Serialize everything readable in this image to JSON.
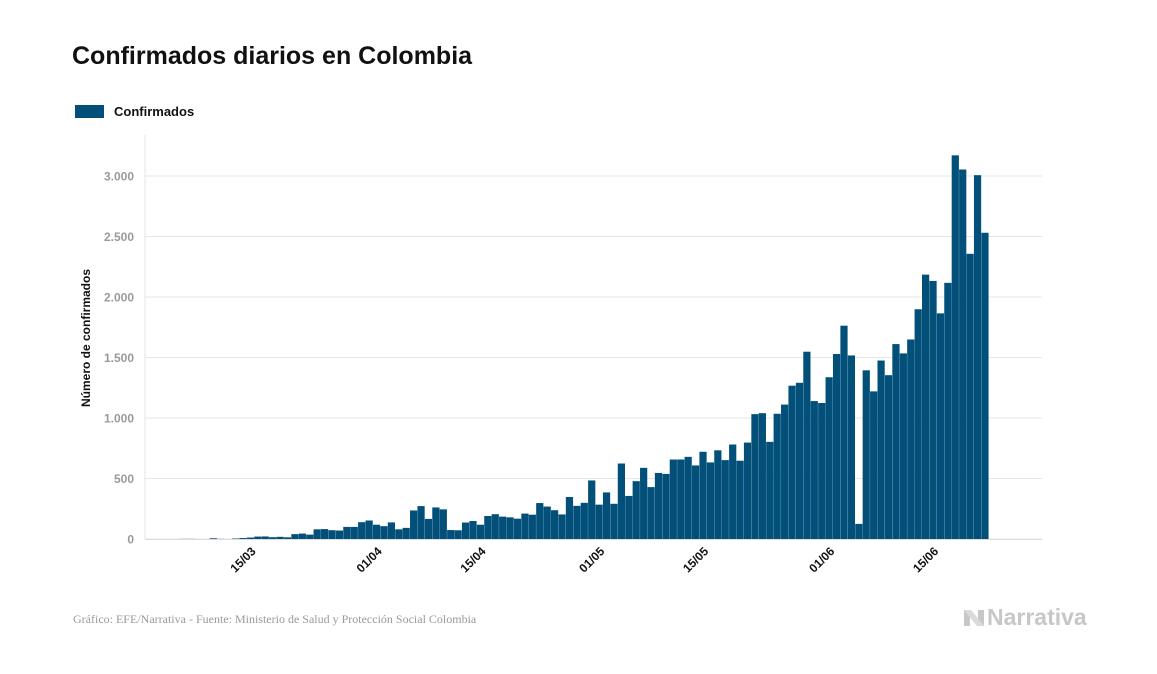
{
  "title": "Confirmados diarios en Colombia",
  "legend": {
    "label": "Confirmados"
  },
  "colors": {
    "bar": "#02507a",
    "grid": "#e6e6e6",
    "tick": "#9a9a9a",
    "axis_label": "#111111"
  },
  "source": "Gráfico: EFE/Narrativa - Fuente: Ministerio de Salud y Protección Social Colombia",
  "logo": {
    "text": "Narrativa",
    "icon": "narrativa-logo-icon"
  },
  "chart_data": {
    "type": "bar",
    "title": "Confirmados diarios en Colombia",
    "xlabel": "",
    "ylabel": "Número de confirmados",
    "ylim": [
      0,
      3300
    ],
    "yticks": [
      0,
      500,
      1000,
      1500,
      2000,
      2500,
      3000
    ],
    "ytick_labels": [
      "0",
      "500",
      "1.000",
      "1.500",
      "2.000",
      "2.500",
      "3.000"
    ],
    "x_start_date": "2020-03-06",
    "xtick_labels": [
      {
        "date": "2020-03-15",
        "label": "15/03"
      },
      {
        "date": "2020-04-01",
        "label": "01/04"
      },
      {
        "date": "2020-04-15",
        "label": "15/04"
      },
      {
        "date": "2020-05-01",
        "label": "01/05"
      },
      {
        "date": "2020-05-15",
        "label": "15/05"
      },
      {
        "date": "2020-06-01",
        "label": "01/06"
      },
      {
        "date": "2020-06-15",
        "label": "15/06"
      }
    ],
    "grid": true,
    "legend_position": "top-left",
    "series": [
      {
        "name": "Confirmados",
        "values": [
          1,
          1,
          0,
          0,
          6,
          1,
          0,
          4,
          8,
          12,
          20,
          21,
          15,
          18,
          14,
          40,
          45,
          36,
          80,
          82,
          73,
          70,
          100,
          100,
          139,
          153,
          118,
          106,
          137,
          80,
          92,
          236,
          272,
          166,
          261,
          245,
          74,
          72,
          136,
          149,
          118,
          190,
          205,
          185,
          179,
          168,
          210,
          201,
          297,
          268,
          238,
          203,
          347,
          274,
          299,
          484,
          284,
          385,
          291,
          624,
          356,
          478,
          588,
          429,
          546,
          538,
          657,
          657,
          679,
          608,
          721,
          633,
          733,
          652,
          781,
          647,
          797,
          1032,
          1040,
          803,
          1035,
          1111,
          1267,
          1291,
          1548,
          1140,
          1124,
          1337,
          1529,
          1763,
          1517,
          125,
          1394,
          1220,
          1475,
          1354,
          1611,
          1534,
          1649,
          1899,
          2185,
          2133,
          1865,
          2117,
          3171,
          3054,
          2357,
          3007,
          2531
        ]
      }
    ]
  }
}
